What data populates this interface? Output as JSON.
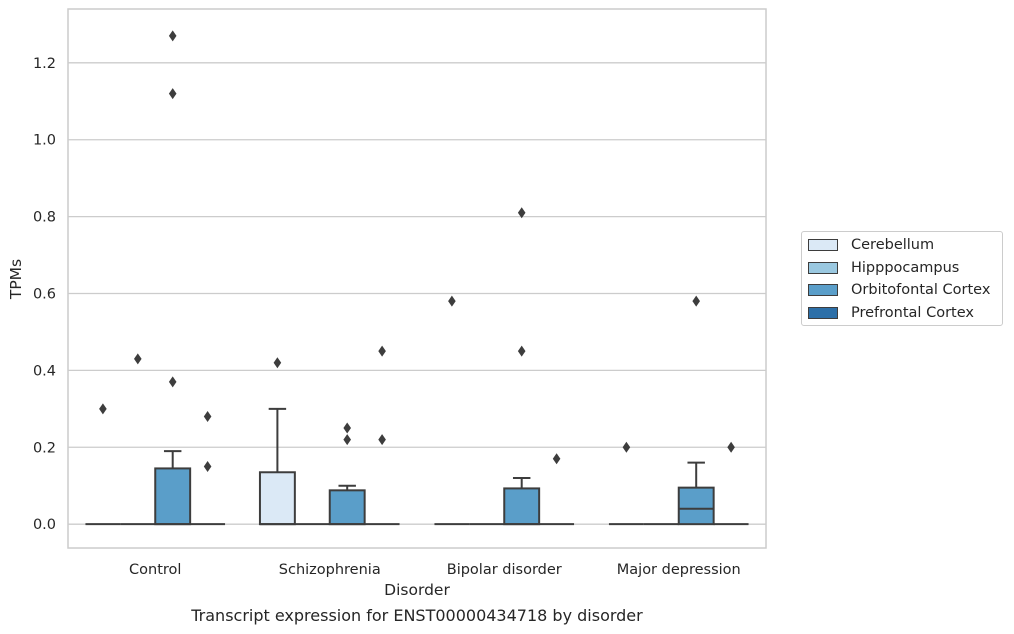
{
  "caption": "Transcript expression for ENST00000434718 by disorder",
  "legend": {
    "entries": [
      {
        "label": "Cerebellum",
        "color": "#dbe9f6"
      },
      {
        "label": "Hipppocampus",
        "color": "#9ac8e0"
      },
      {
        "label": "Orbitofontal Cortex",
        "color": "#5a9ec9"
      },
      {
        "label": "Prefrontal Cortex",
        "color": "#2c6fa8"
      }
    ]
  },
  "chart_data": {
    "type": "box",
    "xlabel": "Disorder",
    "ylabel": "TPMs",
    "categories": [
      "Control",
      "Schizophrenia",
      "Bipolar disorder",
      "Major depression"
    ],
    "ylim": [
      -0.062,
      1.34
    ],
    "yticks": [
      0.0,
      0.2,
      0.4,
      0.6,
      0.8,
      1.0,
      1.2
    ],
    "ytick_labels": [
      "0.0",
      "0.2",
      "0.4",
      "0.6",
      "0.8",
      "1.0",
      "1.2"
    ],
    "grid": "horizontal",
    "legend_position": "right",
    "series": [
      {
        "name": "Cerebellum",
        "color": "#dbe9f6",
        "boxes": [
          {
            "q1": 0,
            "median": 0,
            "q3": 0,
            "whisker_low": 0,
            "whisker_high": 0,
            "outliers": [
              0.3
            ]
          },
          {
            "q1": 0,
            "median": 0,
            "q3": 0.135,
            "whisker_low": 0,
            "whisker_high": 0.3,
            "outliers": [
              0.42
            ]
          },
          {
            "q1": 0,
            "median": 0,
            "q3": 0,
            "whisker_low": 0,
            "whisker_high": 0,
            "outliers": [
              0.58
            ]
          },
          {
            "q1": 0,
            "median": 0,
            "q3": 0,
            "whisker_low": 0,
            "whisker_high": 0,
            "outliers": [
              0.2
            ]
          }
        ]
      },
      {
        "name": "Hipppocampus",
        "color": "#9ac8e0",
        "boxes": [
          {
            "q1": 0,
            "median": 0,
            "q3": 0,
            "whisker_low": 0,
            "whisker_high": 0,
            "outliers": [
              0.43
            ]
          },
          {
            "q1": 0,
            "median": 0,
            "q3": 0,
            "whisker_low": 0,
            "whisker_high": 0,
            "outliers": []
          },
          {
            "q1": 0,
            "median": 0,
            "q3": 0,
            "whisker_low": 0,
            "whisker_high": 0,
            "outliers": []
          },
          {
            "q1": 0,
            "median": 0,
            "q3": 0,
            "whisker_low": 0,
            "whisker_high": 0,
            "outliers": []
          }
        ]
      },
      {
        "name": "Orbitofontal Cortex",
        "color": "#5a9ec9",
        "boxes": [
          {
            "q1": 0,
            "median": 0,
            "q3": 0.145,
            "whisker_low": 0,
            "whisker_high": 0.19,
            "outliers": [
              0.37,
              1.12,
              1.27
            ]
          },
          {
            "q1": 0,
            "median": 0,
            "q3": 0.088,
            "whisker_low": 0,
            "whisker_high": 0.1,
            "outliers": [
              0.22,
              0.25
            ]
          },
          {
            "q1": 0,
            "median": 0,
            "q3": 0.093,
            "whisker_low": 0,
            "whisker_high": 0.12,
            "outliers": [
              0.45,
              0.81
            ]
          },
          {
            "q1": 0,
            "median": 0.04,
            "q3": 0.095,
            "whisker_low": 0,
            "whisker_high": 0.16,
            "outliers": [
              0.58
            ]
          }
        ]
      },
      {
        "name": "Prefrontal Cortex",
        "color": "#2c6fa8",
        "boxes": [
          {
            "q1": 0,
            "median": 0,
            "q3": 0,
            "whisker_low": 0,
            "whisker_high": 0,
            "outliers": [
              0.15,
              0.28
            ]
          },
          {
            "q1": 0,
            "median": 0,
            "q3": 0,
            "whisker_low": 0,
            "whisker_high": 0,
            "outliers": [
              0.22,
              0.45
            ]
          },
          {
            "q1": 0,
            "median": 0,
            "q3": 0,
            "whisker_low": 0,
            "whisker_high": 0,
            "outliers": [
              0.17
            ]
          },
          {
            "q1": 0,
            "median": 0,
            "q3": 0,
            "whisker_low": 0,
            "whisker_high": 0,
            "outliers": [
              0.2
            ]
          }
        ]
      }
    ]
  }
}
